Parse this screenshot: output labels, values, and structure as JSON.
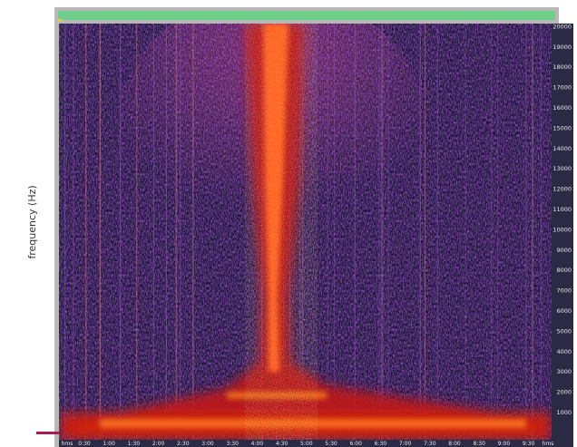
{
  "y_axis": {
    "label": "frequency (Hz)",
    "ticks": [
      "1000",
      "2000",
      "3000",
      "4000",
      "5000",
      "6000",
      "7000",
      "8000",
      "9000",
      "10000",
      "11000",
      "12000",
      "13000",
      "14000",
      "15000",
      "16000",
      "17000",
      "18000",
      "19000",
      "20000"
    ]
  },
  "x_axis": {
    "ticks": [
      "hms",
      "0:30",
      "1:00",
      "1:30",
      "2:00",
      "2:30",
      "3:00",
      "3:30",
      "4:00",
      "4:30",
      "5:00",
      "5:30",
      "6:00",
      "6:30",
      "7:00",
      "7:30",
      "8:00",
      "8:30",
      "9:00",
      "9:30",
      "hms"
    ]
  }
}
